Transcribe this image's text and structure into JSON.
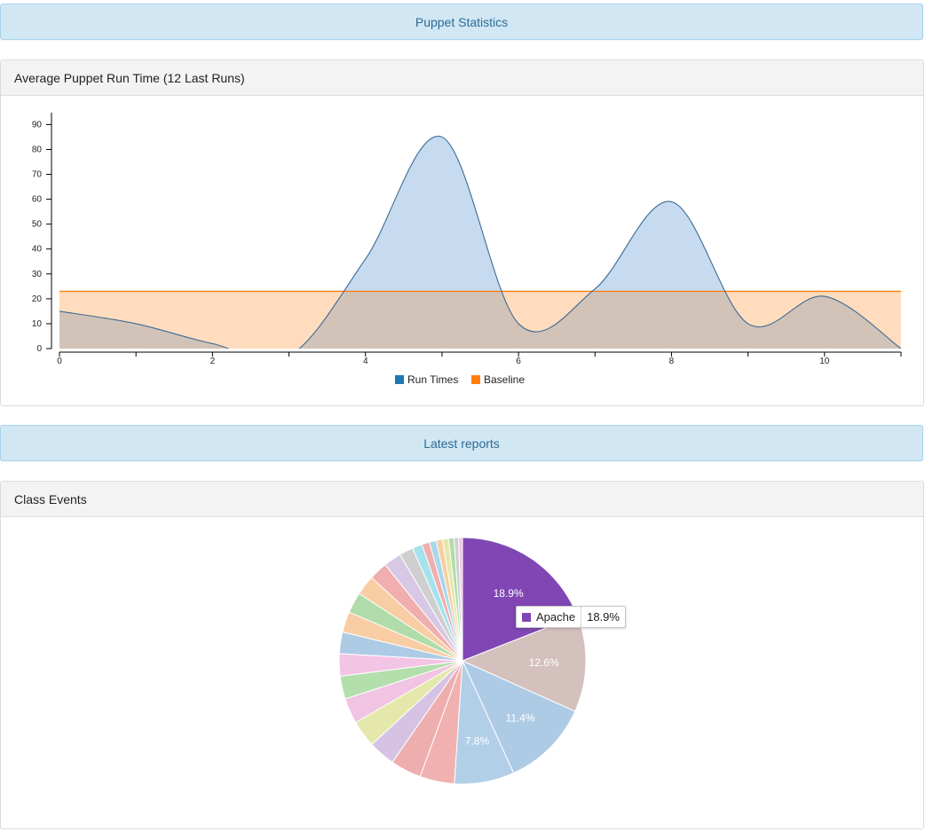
{
  "banners": {
    "stats": "Puppet Statistics",
    "reports": "Latest reports"
  },
  "panels": {
    "runtime_title": "Average Puppet Run Time (12 Last Runs)",
    "class_events_title": "Class Events"
  },
  "colors": {
    "run_times": "#1f77b4",
    "baseline": "#ff7f0e",
    "run_fill": "#c6dbef",
    "baseline_fill": "#fedcbd",
    "overlap_fill": "#d2c3b8"
  },
  "chart_data": [
    {
      "type": "area",
      "title": "Average Puppet Run Time (12 Last Runs)",
      "x": [
        0,
        1,
        2,
        3,
        4,
        5,
        6,
        7,
        8,
        9,
        10,
        11
      ],
      "series": [
        {
          "name": "Run Times",
          "values": [
            15,
            10,
            2,
            -3,
            36,
            85,
            10,
            24,
            59,
            10,
            21,
            0
          ]
        },
        {
          "name": "Baseline",
          "values": [
            23,
            23,
            23,
            23,
            23,
            23,
            23,
            23,
            23,
            23,
            23,
            23
          ]
        }
      ],
      "xticks": [
        0,
        2,
        4,
        6,
        8,
        10
      ],
      "yticks": [
        0,
        10,
        20,
        30,
        40,
        50,
        60,
        70,
        80,
        90
      ],
      "xlim": [
        0,
        11
      ],
      "ylim": [
        0,
        93
      ],
      "legend": [
        "Run Times",
        "Baseline"
      ],
      "legend_position": "bottom"
    },
    {
      "type": "pie",
      "title": "Class Events",
      "slices": [
        {
          "label": "Apache",
          "value": 18.9,
          "text": "18.9%",
          "color": "#8047b4"
        },
        {
          "label": "",
          "value": 12.6,
          "text": "12.6%",
          "color": "#d4c0bd"
        },
        {
          "label": "",
          "value": 11.4,
          "text": "11.4%",
          "color": "#aecbe6"
        },
        {
          "label": "",
          "value": 7.8,
          "text": "7.8%",
          "color": "#b2cfe8"
        },
        {
          "label": "",
          "value": 4.5,
          "text": "",
          "color": "#f2b1b1"
        },
        {
          "label": "",
          "value": 4.0,
          "text": "",
          "color": "#eeaeae"
        },
        {
          "label": "",
          "value": 3.5,
          "text": "",
          "color": "#d6c3e4"
        },
        {
          "label": "",
          "value": 3.5,
          "text": "",
          "color": "#e4e8aa"
        },
        {
          "label": "",
          "value": 3.3,
          "text": "",
          "color": "#f0c4e2"
        },
        {
          "label": "",
          "value": 3.0,
          "text": "",
          "color": "#b4dfad"
        },
        {
          "label": "",
          "value": 2.9,
          "text": "",
          "color": "#f3c4e3"
        },
        {
          "label": "",
          "value": 2.8,
          "text": "",
          "color": "#aecbe6"
        },
        {
          "label": "",
          "value": 2.7,
          "text": "",
          "color": "#f9cda3"
        },
        {
          "label": "",
          "value": 2.7,
          "text": "",
          "color": "#b0dca9"
        },
        {
          "label": "",
          "value": 2.6,
          "text": "",
          "color": "#f9cda3"
        },
        {
          "label": "",
          "value": 2.4,
          "text": "",
          "color": "#f0aeae"
        },
        {
          "label": "",
          "value": 2.3,
          "text": "",
          "color": "#d9c7e6"
        },
        {
          "label": "",
          "value": 1.8,
          "text": "",
          "color": "#cfcfcf"
        },
        {
          "label": "",
          "value": 1.3,
          "text": "",
          "color": "#a6e2ec"
        },
        {
          "label": "",
          "value": 1.0,
          "text": "",
          "color": "#f0aeae"
        },
        {
          "label": "",
          "value": 0.9,
          "text": "",
          "color": "#a8d8ea"
        },
        {
          "label": "",
          "value": 0.8,
          "text": "",
          "color": "#f9cda3"
        },
        {
          "label": "",
          "value": 0.8,
          "text": "",
          "color": "#e4e8aa"
        },
        {
          "label": "",
          "value": 0.7,
          "text": "",
          "color": "#b0dca9"
        },
        {
          "label": "",
          "value": 0.6,
          "text": "",
          "color": "#cfcfcf"
        },
        {
          "label": "",
          "value": 0.5,
          "text": "",
          "color": "#f3c4e3"
        }
      ],
      "tooltip": {
        "label": "Apache",
        "value": "18.9%"
      }
    }
  ]
}
